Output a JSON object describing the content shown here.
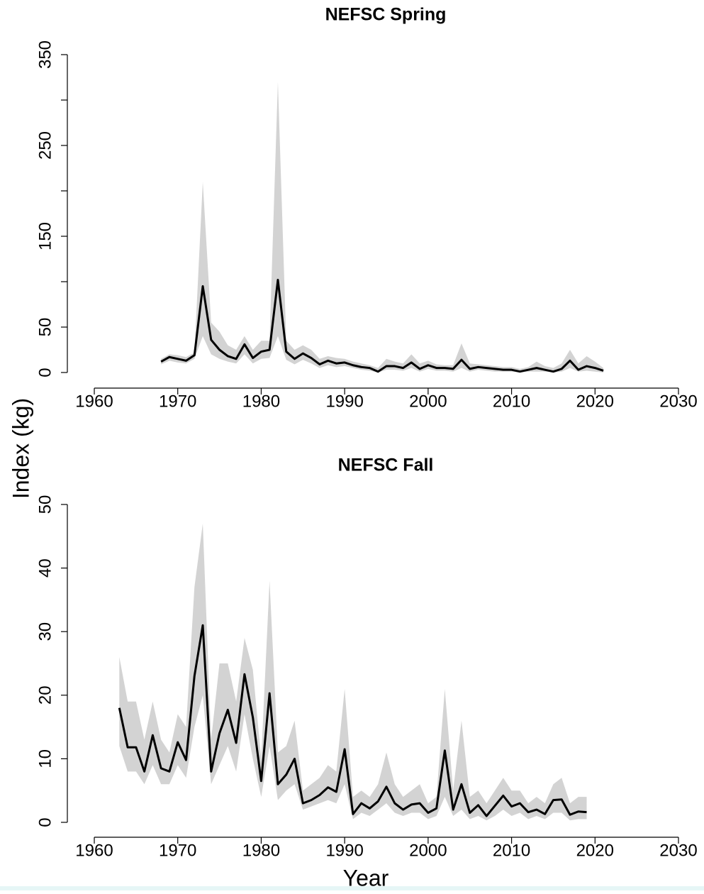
{
  "chart_data": [
    {
      "type": "band-line",
      "title": "NEFSC Spring",
      "x": [
        1968,
        1969,
        1970,
        1971,
        1972,
        1973,
        1974,
        1975,
        1976,
        1977,
        1978,
        1979,
        1980,
        1981,
        1982,
        1983,
        1984,
        1985,
        1986,
        1987,
        1988,
        1989,
        1990,
        1991,
        1992,
        1993,
        1994,
        1995,
        1996,
        1997,
        1998,
        1999,
        2000,
        2001,
        2002,
        2003,
        2004,
        2005,
        2006,
        2007,
        2008,
        2009,
        2010,
        2011,
        2012,
        2013,
        2014,
        2015,
        2016,
        2017,
        2018,
        2019,
        2020,
        2021
      ],
      "values": [
        12,
        17,
        15,
        13,
        19,
        95,
        36,
        25,
        18,
        15,
        31,
        16,
        23,
        25,
        102,
        23,
        15,
        21,
        16,
        9,
        13,
        10,
        11,
        8,
        6,
        5,
        1,
        7,
        7,
        5,
        11,
        4,
        8,
        5,
        5,
        4,
        14,
        4,
        6,
        5,
        4,
        3,
        3,
        1,
        3,
        5,
        3,
        1,
        4,
        13,
        3,
        7,
        5,
        2
      ],
      "upper": [
        15,
        20,
        19,
        17,
        22,
        210,
        55,
        45,
        30,
        25,
        40,
        25,
        35,
        35,
        320,
        35,
        25,
        30,
        25,
        15,
        18,
        16,
        15,
        12,
        10,
        8,
        5,
        15,
        12,
        10,
        20,
        10,
        13,
        9,
        8,
        8,
        32,
        10,
        9,
        8,
        7,
        6,
        6,
        4,
        6,
        12,
        7,
        5,
        10,
        25,
        10,
        18,
        12,
        5
      ],
      "lower": [
        9,
        13,
        11,
        10,
        15,
        40,
        20,
        15,
        12,
        10,
        20,
        10,
        15,
        16,
        40,
        14,
        9,
        14,
        10,
        5,
        8,
        6,
        7,
        5,
        3,
        2,
        0,
        3,
        3,
        2,
        5,
        1,
        4,
        2,
        2,
        1,
        5,
        1,
        3,
        2,
        1,
        1,
        1,
        0,
        1,
        1,
        1,
        0,
        1,
        5,
        1,
        2,
        1,
        0
      ],
      "color": "#000000",
      "band_color": "#d3d3d3",
      "xlim": [
        1960,
        2030
      ],
      "xticks": [
        1960,
        1970,
        1980,
        1990,
        2000,
        2010,
        2020,
        2030
      ],
      "ylim": [
        0,
        350
      ],
      "yticks": [
        0,
        50,
        {
          "value": 100,
          "label": null
        },
        150,
        {
          "value": 200,
          "label": null
        },
        250,
        {
          "value": 300,
          "label": null
        },
        350
      ]
    },
    {
      "type": "band-line",
      "title": "NEFSC Fall",
      "x": [
        1963,
        1964,
        1965,
        1966,
        1967,
        1968,
        1969,
        1970,
        1971,
        1972,
        1973,
        1974,
        1975,
        1976,
        1977,
        1978,
        1979,
        1980,
        1981,
        1982,
        1983,
        1984,
        1985,
        1986,
        1987,
        1988,
        1989,
        1990,
        1991,
        1992,
        1993,
        1994,
        1995,
        1996,
        1997,
        1998,
        1999,
        2000,
        2001,
        2002,
        2003,
        2004,
        2005,
        2006,
        2007,
        2008,
        2009,
        2010,
        2011,
        2012,
        2013,
        2014,
        2015,
        2016,
        2017,
        2018,
        2019
      ],
      "values": [
        18,
        11.8,
        11.8,
        8,
        13.7,
        8.5,
        8,
        12.6,
        9.8,
        23,
        31,
        8,
        14,
        17.7,
        12.5,
        23.3,
        16.5,
        6.5,
        20.3,
        6,
        7.5,
        10,
        3,
        3.5,
        4.3,
        5.5,
        4.8,
        11.5,
        1.3,
        3,
        2.2,
        3.3,
        5.6,
        3,
        2,
        2.8,
        3,
        1.5,
        2.2,
        11.3,
        2,
        6,
        1.5,
        2.7,
        1,
        2.6,
        4.2,
        2.5,
        3,
        1.6,
        2,
        1.3,
        3.5,
        3.6,
        1.2,
        1.7,
        1.6
      ],
      "upper": [
        26,
        19,
        19,
        13,
        19,
        13,
        11,
        17,
        15,
        37,
        47,
        13,
        25,
        25,
        19,
        29,
        24,
        10,
        38,
        11,
        12,
        16,
        5,
        6,
        7,
        9,
        8,
        21,
        4,
        5,
        4,
        6,
        11,
        6,
        4,
        5,
        6,
        3,
        4,
        21,
        5,
        16,
        4,
        5,
        3,
        5,
        7,
        5,
        5,
        3,
        4,
        3,
        6,
        7,
        3,
        4,
        4
      ],
      "lower": [
        12,
        8,
        8,
        6,
        9,
        6,
        6,
        9,
        7,
        15,
        20,
        6,
        9,
        12,
        8,
        17,
        10,
        4,
        12,
        3.5,
        5,
        6,
        2,
        2.5,
        3,
        3.5,
        3,
        6,
        0.5,
        1.5,
        1,
        2,
        3,
        1.5,
        1,
        1.5,
        1.5,
        0.5,
        1,
        4,
        1,
        2,
        0.5,
        1,
        0.3,
        1,
        2,
        1,
        1.5,
        0.5,
        1,
        0.5,
        1.5,
        1.5,
        0.3,
        0.5,
        0.5
      ],
      "color": "#000000",
      "band_color": "#d3d3d3",
      "xlim": [
        1960,
        2030
      ],
      "xticks": [
        1960,
        1970,
        1980,
        1990,
        2000,
        2010,
        2020,
        2030
      ],
      "ylim": [
        0,
        50
      ],
      "yticks": [
        0,
        10,
        20,
        30,
        40,
        50
      ]
    }
  ],
  "ylabel": "Index  (kg)",
  "xlabel": "Year"
}
